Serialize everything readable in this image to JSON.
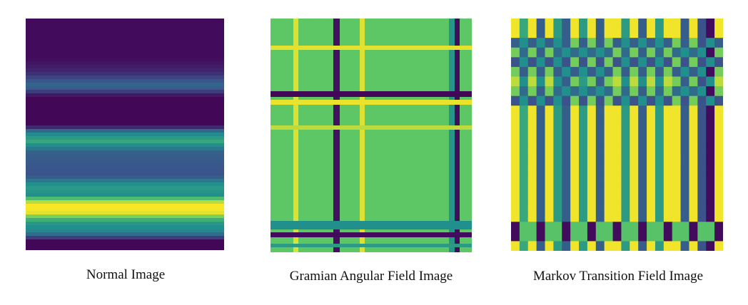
{
  "figure": {
    "panels": [
      {
        "id": "normal",
        "caption": "Normal Image"
      },
      {
        "id": "gaf",
        "caption": "Gramian Angular Field Image"
      },
      {
        "id": "mtf",
        "caption": "Markov Transition Field Image"
      }
    ],
    "colormap": {
      "name": "viridis",
      "dark_purple": "#440154",
      "indigo": "#3b528b",
      "teal": "#21908d",
      "green": "#5ec962",
      "yellow": "#fde725"
    }
  }
}
